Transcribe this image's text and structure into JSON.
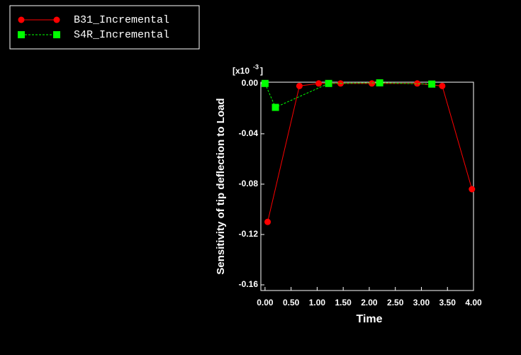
{
  "chart_data": {
    "type": "line",
    "y_label": "Sensitivity of tip deflection to Load",
    "x_label": "Time",
    "y_scale": {
      "base": "[x10",
      "exponent": "-3",
      "close": "]"
    },
    "xlim": [
      -0.08,
      4.0
    ],
    "ylim": [
      -0.1645,
      0.001
    ],
    "xticks": [
      {
        "value": 0,
        "label": "0.00"
      },
      {
        "value": 0.5,
        "label": "0.50"
      },
      {
        "value": 1,
        "label": "1.00"
      },
      {
        "value": 1.5,
        "label": "1.50"
      },
      {
        "value": 2,
        "label": "2.00"
      },
      {
        "value": 2.5,
        "label": "2.50"
      },
      {
        "value": 3,
        "label": "3.00"
      },
      {
        "value": 3.5,
        "label": "3.50"
      },
      {
        "value": 4,
        "label": "4.00"
      }
    ],
    "yticks": [
      {
        "value": 0,
        "label": "0.00"
      },
      {
        "value": -0.04,
        "label": "-0.04"
      },
      {
        "value": -0.08,
        "label": "-0.08"
      },
      {
        "value": -0.12,
        "label": "-0.12"
      },
      {
        "value": -0.16,
        "label": "-0.16"
      }
    ],
    "series": [
      {
        "name": "B31_Incremental",
        "color": "#ff0000",
        "marker": "circle",
        "dash": false,
        "x": [
          0.05,
          0.66,
          1.03,
          1.45,
          2.05,
          2.92,
          3.4,
          3.97
        ],
        "values": [
          -0.11,
          -0.002,
          0,
          0,
          0,
          0,
          -0.002,
          -0.084
        ]
      },
      {
        "name": "S4R_Incremental",
        "color": "#00ff00",
        "marker": "square",
        "dash": true,
        "x": [
          0.0,
          0.2,
          1.22,
          2.2,
          3.2
        ],
        "values": [
          0,
          -0.019,
          0,
          0.0005,
          -0.0005
        ]
      }
    ]
  }
}
